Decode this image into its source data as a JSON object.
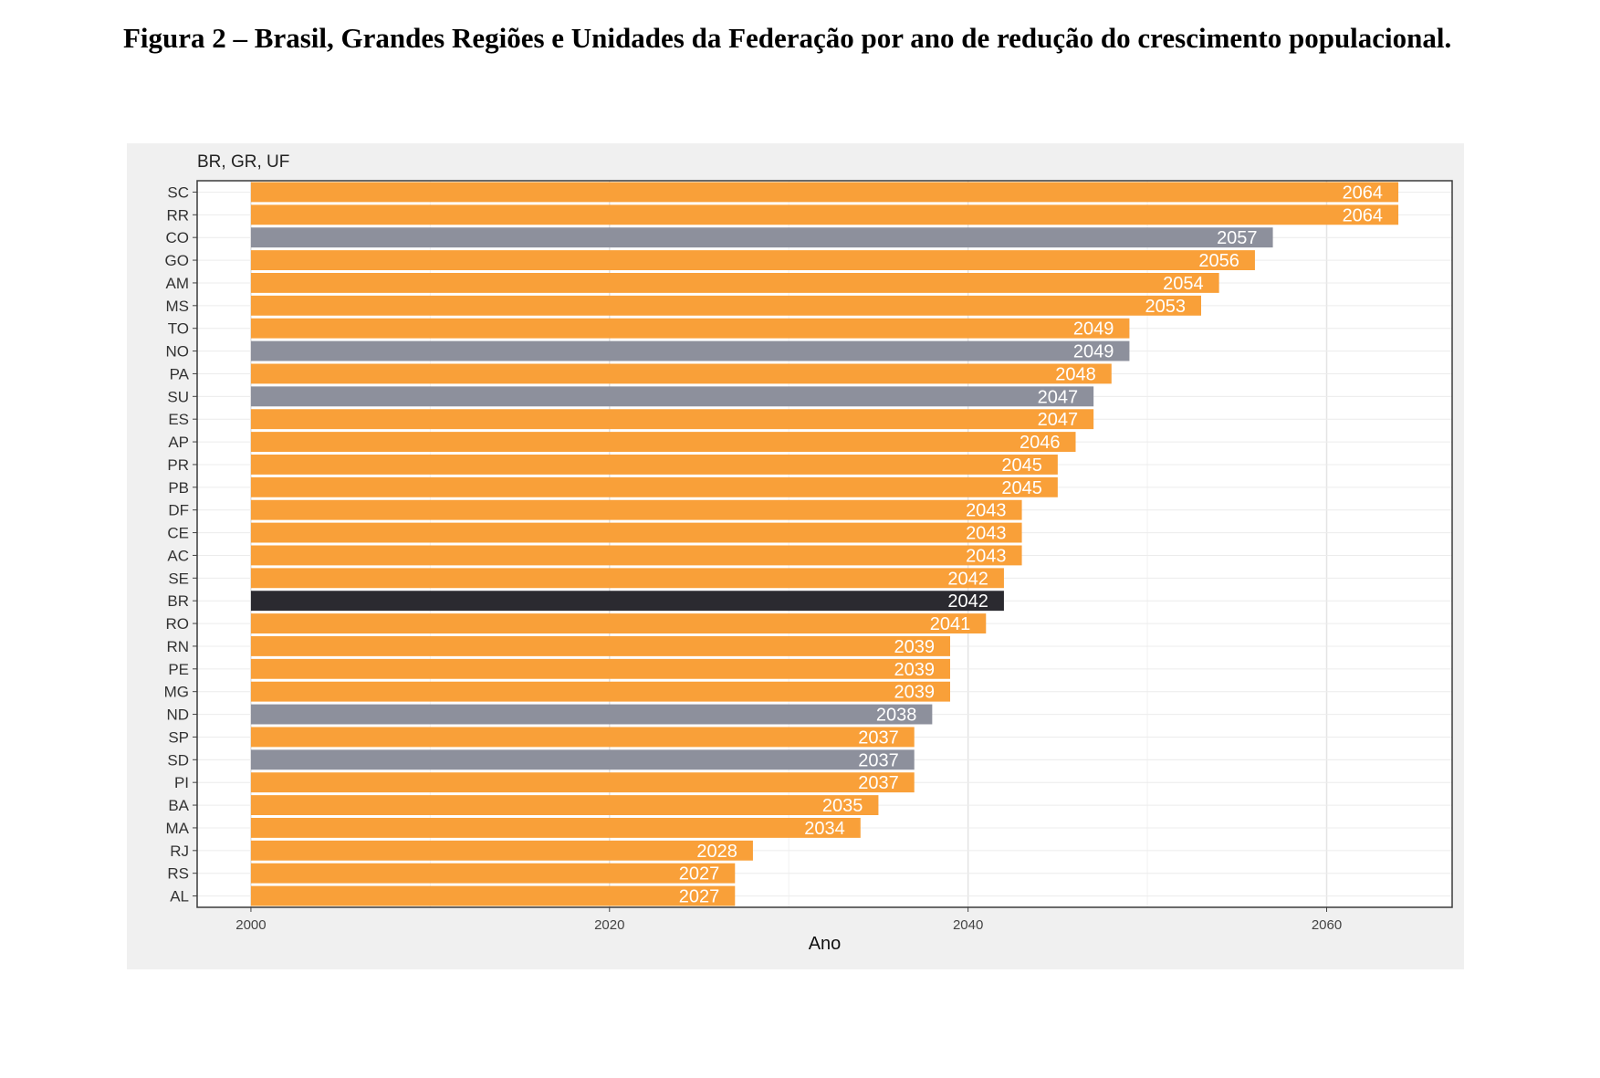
{
  "caption": "Figura 2 – Brasil, Grandes Regiões e Unidades da Federação por ano de redução do crescimento populacional.",
  "chart_data": {
    "type": "bar",
    "orientation": "horizontal",
    "title": "",
    "ylabel": "BR, GR, UF",
    "xlabel": "Ano",
    "xlim": [
      1997,
      2067
    ],
    "baseline": 2000,
    "xticks": [
      2000,
      2020,
      2040,
      2060
    ],
    "grid": true,
    "legend": "none",
    "colors": {
      "UF": "#f9a039",
      "GR": "#8d909c",
      "BR": "#2b2a30"
    },
    "bars": [
      {
        "label": "SC",
        "value": 2064,
        "group": "UF"
      },
      {
        "label": "RR",
        "value": 2064,
        "group": "UF"
      },
      {
        "label": "CO",
        "value": 2057,
        "group": "GR"
      },
      {
        "label": "GO",
        "value": 2056,
        "group": "UF"
      },
      {
        "label": "AM",
        "value": 2054,
        "group": "UF"
      },
      {
        "label": "MS",
        "value": 2053,
        "group": "UF"
      },
      {
        "label": "TO",
        "value": 2049,
        "group": "UF"
      },
      {
        "label": "NO",
        "value": 2049,
        "group": "GR"
      },
      {
        "label": "PA",
        "value": 2048,
        "group": "UF"
      },
      {
        "label": "SU",
        "value": 2047,
        "group": "GR"
      },
      {
        "label": "ES",
        "value": 2047,
        "group": "UF"
      },
      {
        "label": "AP",
        "value": 2046,
        "group": "UF"
      },
      {
        "label": "PR",
        "value": 2045,
        "group": "UF"
      },
      {
        "label": "PB",
        "value": 2045,
        "group": "UF"
      },
      {
        "label": "DF",
        "value": 2043,
        "group": "UF"
      },
      {
        "label": "CE",
        "value": 2043,
        "group": "UF"
      },
      {
        "label": "AC",
        "value": 2043,
        "group": "UF"
      },
      {
        "label": "SE",
        "value": 2042,
        "group": "UF"
      },
      {
        "label": "BR",
        "value": 2042,
        "group": "BR"
      },
      {
        "label": "RO",
        "value": 2041,
        "group": "UF"
      },
      {
        "label": "RN",
        "value": 2039,
        "group": "UF"
      },
      {
        "label": "PE",
        "value": 2039,
        "group": "UF"
      },
      {
        "label": "MG",
        "value": 2039,
        "group": "UF"
      },
      {
        "label": "ND",
        "value": 2038,
        "group": "GR"
      },
      {
        "label": "SP",
        "value": 2037,
        "group": "UF"
      },
      {
        "label": "SD",
        "value": 2037,
        "group": "GR"
      },
      {
        "label": "PI",
        "value": 2037,
        "group": "UF"
      },
      {
        "label": "BA",
        "value": 2035,
        "group": "UF"
      },
      {
        "label": "MA",
        "value": 2034,
        "group": "UF"
      },
      {
        "label": "RJ",
        "value": 2028,
        "group": "UF"
      },
      {
        "label": "RS",
        "value": 2027,
        "group": "UF"
      },
      {
        "label": "AL",
        "value": 2027,
        "group": "UF"
      }
    ]
  }
}
